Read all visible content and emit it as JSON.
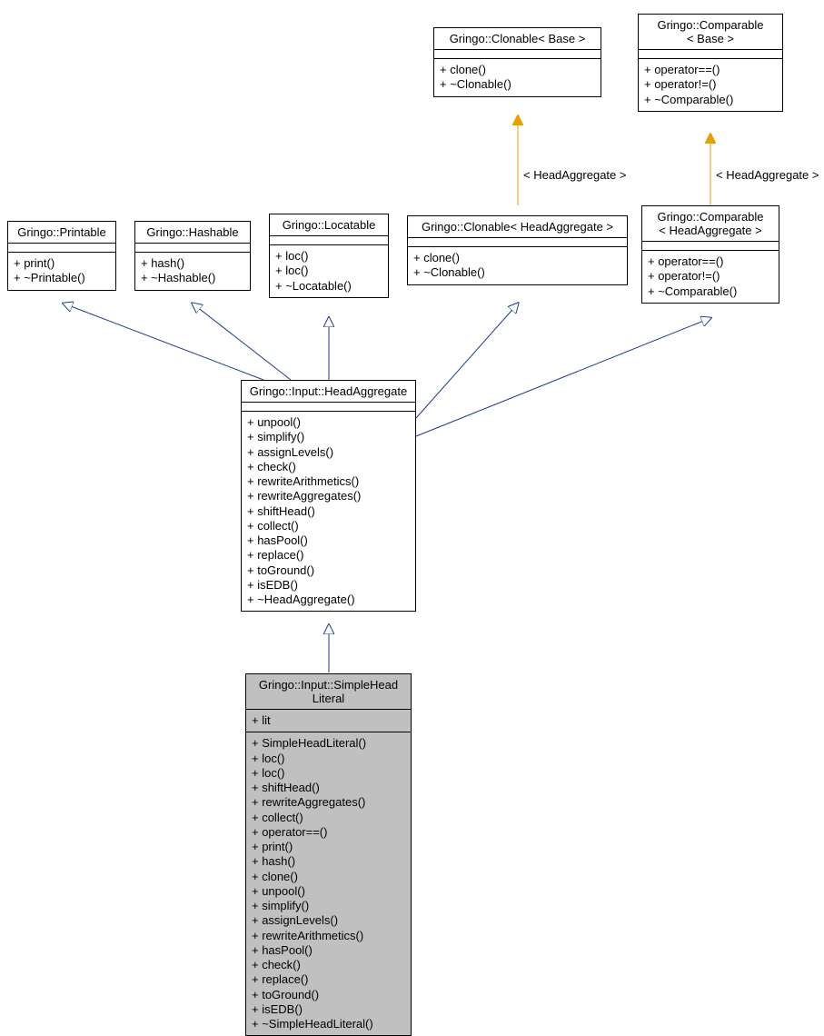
{
  "colors": {
    "background": "#ffffff",
    "box_border": "#000000",
    "box_fill": "#ffffff",
    "box_highlight_fill": "#c0c0c0",
    "inherit_arrow": "#1e3a8a",
    "template_arrow": "#e6a000"
  },
  "edge_labels": {
    "clonable_tpl": "< HeadAggregate >",
    "comparable_tpl": "< HeadAggregate >"
  },
  "boxes": {
    "printable": {
      "title": "Gringo::Printable",
      "members": [
        "+ print()",
        "+ ~Printable()"
      ]
    },
    "hashable": {
      "title": "Gringo::Hashable",
      "members": [
        "+ hash()",
        "+ ~Hashable()"
      ]
    },
    "locatable": {
      "title": "Gringo::Locatable",
      "members": [
        "+ loc()",
        "+ loc()",
        "+ ~Locatable()"
      ]
    },
    "clonable_head": {
      "title": "Gringo::Clonable< HeadAggregate >",
      "members": [
        "+ clone()",
        "+ ~Clonable()"
      ]
    },
    "clonable_base": {
      "title": "Gringo::Clonable< Base >",
      "members": [
        "+ clone()",
        "+ ~Clonable()"
      ]
    },
    "comparable_head": {
      "title_l1": "Gringo::Comparable",
      "title_l2": "< HeadAggregate >",
      "members": [
        "+ operator==()",
        "+ operator!=()",
        "+ ~Comparable()"
      ]
    },
    "comparable_base": {
      "title_l1": "Gringo::Comparable",
      "title_l2": "< Base >",
      "members": [
        "+ operator==()",
        "+ operator!=()",
        "+ ~Comparable()"
      ]
    },
    "headagg": {
      "title": "Gringo::Input::HeadAggregate",
      "members": [
        "+ unpool()",
        "+ simplify()",
        "+ assignLevels()",
        "+ check()",
        "+ rewriteArithmetics()",
        "+ rewriteAggregates()",
        "+ shiftHead()",
        "+ collect()",
        "+ hasPool()",
        "+ replace()",
        "+ toGround()",
        "+ isEDB()",
        "+ ~HeadAggregate()"
      ]
    },
    "simplehead": {
      "title_l1": "Gringo::Input::SimpleHead",
      "title_l2": "Literal",
      "attrs": [
        "+ lit"
      ],
      "members": [
        "+ SimpleHeadLiteral()",
        "+ loc()",
        "+ loc()",
        "+ shiftHead()",
        "+ rewriteAggregates()",
        "+ collect()",
        "+ operator==()",
        "+ print()",
        "+ hash()",
        "+ clone()",
        "+ unpool()",
        "+ simplify()",
        "+ assignLevels()",
        "+ rewriteArithmetics()",
        "+ hasPool()",
        "+ check()",
        "+ replace()",
        "+ toGround()",
        "+ isEDB()",
        "+ ~SimpleHeadLiteral()"
      ]
    }
  }
}
